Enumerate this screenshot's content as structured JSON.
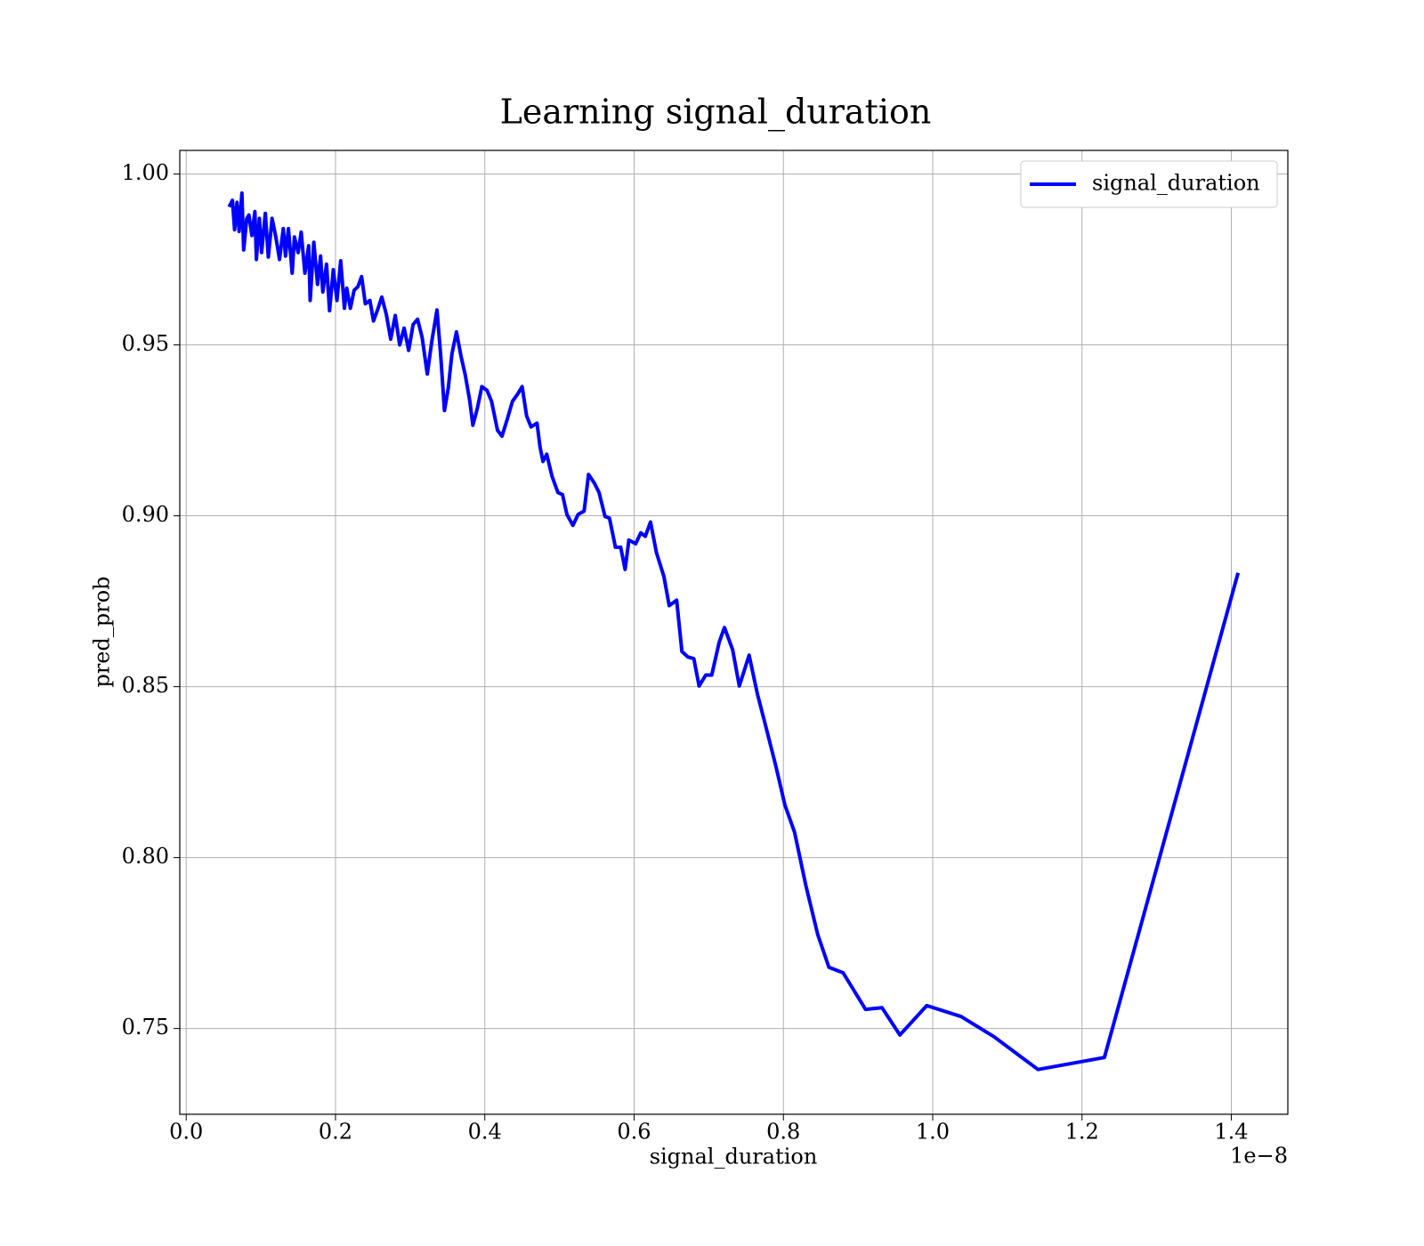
{
  "chart_data": {
    "type": "line",
    "title": "Learning signal_duration",
    "x_label": "signal_duration",
    "y_label": "pred_prob",
    "x_offset_label": "1e−8",
    "x": [
      0.0575,
      0.062,
      0.0648,
      0.068,
      0.0709,
      0.0746,
      0.077,
      0.081,
      0.084,
      0.088,
      0.092,
      0.094,
      0.098,
      0.101,
      0.106,
      0.11,
      0.115,
      0.12,
      0.125,
      0.13,
      0.133,
      0.137,
      0.142,
      0.145,
      0.15,
      0.154,
      0.159,
      0.164,
      0.166,
      0.171,
      0.176,
      0.18,
      0.183,
      0.188,
      0.192,
      0.197,
      0.202,
      0.207,
      0.212,
      0.215,
      0.22,
      0.225,
      0.23,
      0.235,
      0.24,
      0.246,
      0.251,
      0.256,
      0.262,
      0.268,
      0.274,
      0.28,
      0.286,
      0.292,
      0.298,
      0.304,
      0.31,
      0.316,
      0.323,
      0.329,
      0.336,
      0.341,
      0.346,
      0.351,
      0.356,
      0.362,
      0.368,
      0.374,
      0.38,
      0.384,
      0.39,
      0.396,
      0.403,
      0.409,
      0.417,
      0.423,
      0.43,
      0.437,
      0.444,
      0.45,
      0.456,
      0.462,
      0.47,
      0.474,
      0.478,
      0.483,
      0.49,
      0.498,
      0.504,
      0.51,
      0.518,
      0.525,
      0.533,
      0.539,
      0.547,
      0.553,
      0.561,
      0.567,
      0.575,
      0.582,
      0.588,
      0.593,
      0.602,
      0.609,
      0.615,
      0.622,
      0.63,
      0.64,
      0.647,
      0.657,
      0.664,
      0.672,
      0.68,
      0.687,
      0.696,
      0.704,
      0.714,
      0.721,
      0.732,
      0.741,
      0.754,
      0.765,
      0.777,
      0.79,
      0.802,
      0.815,
      0.83,
      0.846,
      0.861,
      0.88,
      0.91,
      0.932,
      0.956,
      0.992,
      1.038,
      1.082,
      1.141,
      1.23,
      1.409
    ],
    "series": [
      {
        "name": "signal_duration",
        "color": "#0000ff",
        "values": [
          0.9904,
          0.9923,
          0.9837,
          0.9917,
          0.9832,
          0.9944,
          0.9778,
          0.9869,
          0.988,
          0.982,
          0.989,
          0.975,
          0.987,
          0.977,
          0.9885,
          0.9757,
          0.987,
          0.9816,
          0.975,
          0.984,
          0.976,
          0.984,
          0.971,
          0.9816,
          0.977,
          0.983,
          0.971,
          0.979,
          0.963,
          0.98,
          0.9677,
          0.976,
          0.9655,
          0.9736,
          0.96,
          0.972,
          0.963,
          0.9746,
          0.9607,
          0.9666,
          0.9607,
          0.966,
          0.967,
          0.97,
          0.962,
          0.963,
          0.957,
          0.96,
          0.964,
          0.959,
          0.9517,
          0.9586,
          0.95,
          0.9549,
          0.9484,
          0.956,
          0.9575,
          0.9522,
          0.9415,
          0.9511,
          0.9602,
          0.9468,
          0.9308,
          0.9372,
          0.9474,
          0.9538,
          0.9468,
          0.941,
          0.9335,
          0.9265,
          0.9314,
          0.9378,
          0.9367,
          0.9335,
          0.925,
          0.9233,
          0.9282,
          0.9335,
          0.9356,
          0.9378,
          0.9292,
          0.926,
          0.9271,
          0.9201,
          0.9159,
          0.918,
          0.9116,
          0.9068,
          0.9062,
          0.9004,
          0.8972,
          0.9004,
          0.9014,
          0.9121,
          0.9095,
          0.9068,
          0.8998,
          0.8993,
          0.8908,
          0.8908,
          0.8843,
          0.8929,
          0.8918,
          0.895,
          0.894,
          0.8982,
          0.8892,
          0.8822,
          0.8737,
          0.8753,
          0.8603,
          0.8587,
          0.8582,
          0.8502,
          0.8534,
          0.8534,
          0.863,
          0.8673,
          0.8608,
          0.8502,
          0.8592,
          0.848,
          0.8379,
          0.8267,
          0.8154,
          0.8074,
          0.7919,
          0.7775,
          0.7679,
          0.7663,
          0.7556,
          0.7561,
          0.7481,
          0.7567,
          0.7535,
          0.7476,
          0.738,
          0.7415,
          0.8833
        ]
      }
    ],
    "xlim": [
      -0.0086,
      1.4757
    ],
    "xticks": [
      {
        "value": 0,
        "label": "0.0"
      },
      0.2,
      0.4,
      0.6,
      0.8,
      {
        "value": 1,
        "label": "1.0"
      },
      1.2,
      1.4
    ],
    "ylim": [
      0.7249,
      1.0069
    ],
    "yticks": [
      0.75,
      {
        "value": 0.8,
        "label": "0.80"
      },
      0.85,
      {
        "value": 0.9,
        "label": "0.90"
      },
      0.95,
      {
        "value": 1,
        "label": "1.00"
      }
    ],
    "grid": true,
    "legend": "upper right"
  }
}
